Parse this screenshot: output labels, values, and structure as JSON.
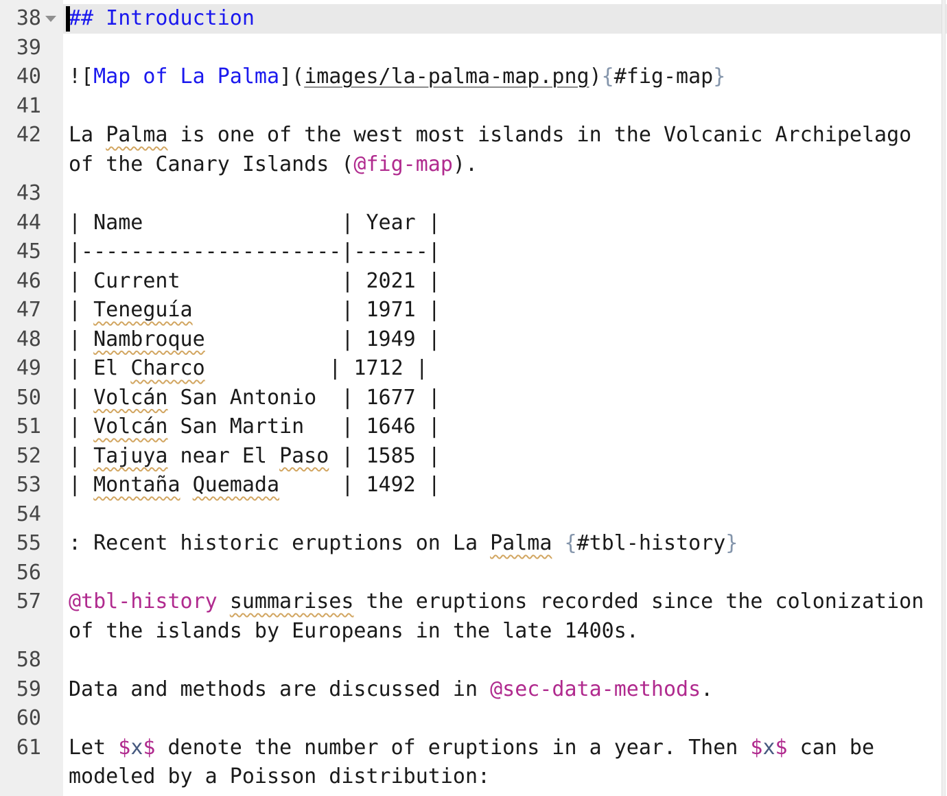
{
  "app": {
    "type": "code-editor",
    "content_kind": "quarto-markdown-source"
  },
  "colors": {
    "editor_bg": "#ffffff",
    "gutter_bg": "#efefef",
    "line_number": "#474747",
    "text": "#1a1a1a",
    "heading_blue": "#1a18ee",
    "link_blue": "#1a18ee",
    "reference_magenta": "#b02a8e",
    "math_var_slate": "#46597f",
    "brace_slate": "#8495ab",
    "current_line_bg": "#e9e9e9",
    "spell_squiggle_gold": "#d2a661",
    "link_underline_gray": "#8c8c8c",
    "fold_arrow_gray": "#8f8f8f",
    "cursor_black": "#000000"
  },
  "editor": {
    "current_line_number": 38,
    "first_line_number": 38,
    "last_line_number": 61,
    "lines": [
      {
        "n": 38,
        "current": true,
        "cursor": true,
        "fold": true,
        "segments": [
          {
            "text": "## Introduction",
            "style": "heading"
          }
        ]
      },
      {
        "n": 39,
        "segments": []
      },
      {
        "n": 40,
        "segments": [
          {
            "text": "![",
            "style": "text"
          },
          {
            "text": "Map of La Palma",
            "style": "link-text"
          },
          {
            "text": "](",
            "style": "text"
          },
          {
            "text": "images/la-palma-map.png",
            "style": "link-url"
          },
          {
            "text": ")",
            "style": "text"
          },
          {
            "text": "{",
            "style": "brace"
          },
          {
            "text": "#fig-map",
            "style": "text"
          },
          {
            "text": "}",
            "style": "brace"
          }
        ]
      },
      {
        "n": 41,
        "segments": []
      },
      {
        "n": 42,
        "segments": [
          {
            "text": "La ",
            "style": "text"
          },
          {
            "text": "Palma",
            "style": "misspelled"
          },
          {
            "text": " is one of the west most islands in the Volcanic Archipelago of the Canary Islands (",
            "style": "text"
          },
          {
            "text": "@fig-map",
            "style": "reference"
          },
          {
            "text": ").",
            "style": "text"
          }
        ]
      },
      {
        "n": 43,
        "segments": []
      },
      {
        "n": 44,
        "segments": [
          {
            "text": "| Name                | Year |",
            "style": "text"
          }
        ]
      },
      {
        "n": 45,
        "segments": [
          {
            "text": "|---------------------|------|",
            "style": "text"
          }
        ]
      },
      {
        "n": 46,
        "segments": [
          {
            "text": "| Current             | 2021 |",
            "style": "text"
          }
        ]
      },
      {
        "n": 47,
        "segments": [
          {
            "text": "| ",
            "style": "text"
          },
          {
            "text": "Teneguía",
            "style": "misspelled"
          },
          {
            "text": "            | 1971 |",
            "style": "text"
          }
        ]
      },
      {
        "n": 48,
        "segments": [
          {
            "text": "| ",
            "style": "text"
          },
          {
            "text": "Nambroque",
            "style": "misspelled"
          },
          {
            "text": "           | 1949 |",
            "style": "text"
          }
        ]
      },
      {
        "n": 49,
        "segments": [
          {
            "text": "| El ",
            "style": "text"
          },
          {
            "text": "Charco",
            "style": "misspelled"
          },
          {
            "text": "          | 1712 |",
            "style": "text"
          }
        ]
      },
      {
        "n": 50,
        "segments": [
          {
            "text": "| ",
            "style": "text"
          },
          {
            "text": "Volcán",
            "style": "misspelled"
          },
          {
            "text": " San Antonio  | 1677 |",
            "style": "text"
          }
        ]
      },
      {
        "n": 51,
        "segments": [
          {
            "text": "| ",
            "style": "text"
          },
          {
            "text": "Volcán",
            "style": "misspelled"
          },
          {
            "text": " San Martin   | 1646 |",
            "style": "text"
          }
        ]
      },
      {
        "n": 52,
        "segments": [
          {
            "text": "| ",
            "style": "text"
          },
          {
            "text": "Tajuya",
            "style": "misspelled"
          },
          {
            "text": " near El ",
            "style": "text"
          },
          {
            "text": "Paso",
            "style": "misspelled"
          },
          {
            "text": " | 1585 |",
            "style": "text"
          }
        ]
      },
      {
        "n": 53,
        "segments": [
          {
            "text": "| ",
            "style": "text"
          },
          {
            "text": "Montaña",
            "style": "misspelled"
          },
          {
            "text": " ",
            "style": "text"
          },
          {
            "text": "Quemada",
            "style": "misspelled"
          },
          {
            "text": "     | 1492 |",
            "style": "text"
          }
        ]
      },
      {
        "n": 54,
        "segments": []
      },
      {
        "n": 55,
        "segments": [
          {
            "text": ": Recent historic eruptions on La ",
            "style": "text"
          },
          {
            "text": "Palma",
            "style": "misspelled"
          },
          {
            "text": " ",
            "style": "text"
          },
          {
            "text": "{",
            "style": "brace"
          },
          {
            "text": "#tbl-history",
            "style": "text"
          },
          {
            "text": "}",
            "style": "brace"
          }
        ]
      },
      {
        "n": 56,
        "segments": []
      },
      {
        "n": 57,
        "segments": [
          {
            "text": "@tbl-history",
            "style": "reference"
          },
          {
            "text": " ",
            "style": "text"
          },
          {
            "text": "summarises",
            "style": "misspelled"
          },
          {
            "text": " the eruptions recorded since the colonization of the islands by Europeans in the late 1400s.",
            "style": "text"
          }
        ]
      },
      {
        "n": 58,
        "segments": []
      },
      {
        "n": 59,
        "segments": [
          {
            "text": "Data and methods are discussed in ",
            "style": "text"
          },
          {
            "text": "@sec-data-methods",
            "style": "reference"
          },
          {
            "text": ".",
            "style": "text"
          }
        ]
      },
      {
        "n": 60,
        "segments": []
      },
      {
        "n": 61,
        "segments": [
          {
            "text": "Let ",
            "style": "text"
          },
          {
            "text": "$",
            "style": "math-delim"
          },
          {
            "text": "x",
            "style": "math-var"
          },
          {
            "text": "$",
            "style": "math-delim"
          },
          {
            "text": " denote the number of eruptions in a year. Then ",
            "style": "text"
          },
          {
            "text": "$",
            "style": "math-delim"
          },
          {
            "text": "x",
            "style": "math-var"
          },
          {
            "text": "$",
            "style": "math-delim"
          },
          {
            "text": " can be modeled by a Poisson distribution:",
            "style": "text"
          }
        ]
      }
    ]
  }
}
